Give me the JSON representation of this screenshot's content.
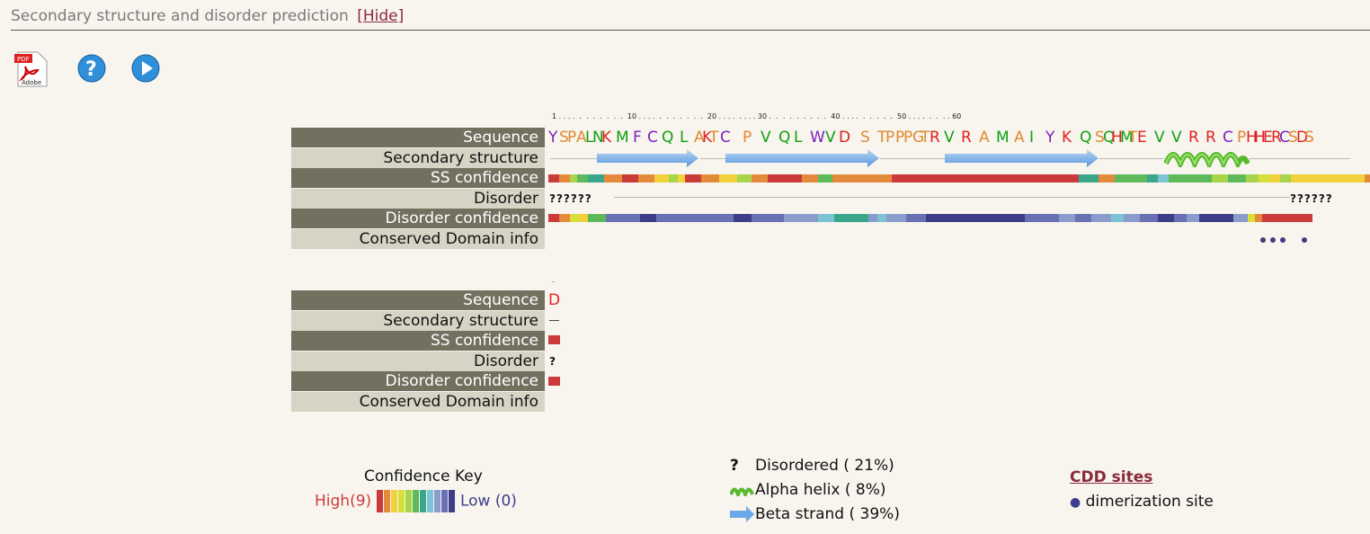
{
  "header": {
    "title": "Secondary structure and disorder prediction",
    "hide_link": "[Hide]"
  },
  "toolbar": {
    "pdf_icon": "pdf-icon",
    "help_icon": "help-icon",
    "play_icon": "play-icon"
  },
  "row_labels": [
    "Sequence",
    "Secondary structure",
    "SS confidence",
    "Disorder",
    "Disorder confidence",
    "Conserved Domain info"
  ],
  "block1": {
    "ruler": "1 . . . .  .  .  .  .  .  .  .  10 . . . .  .  .  .  .  .  .  .  20 . . . .  . . . . 30 .  .  .  .  .  .  .  .  .  40 . . . .  .  .  .  .  .  50 . . . .  .  .  . . 60",
    "sequence": "YSPALNKMFCQLAKTCPVQLWVDSTPPPGTRVRAMAIYKQSQHMTEVVRRCPHHERCSDS",
    "disorder_left": "??????",
    "disorder_right": "??????"
  },
  "block2": {
    "sequence": "D",
    "disorder": "?"
  },
  "confidence_key": {
    "title": "Confidence Key",
    "high": "High(9)",
    "low": "Low (0)",
    "colors": [
      "#cc3b3b",
      "#e48a3b",
      "#f2d23a",
      "#d7df3a",
      "#a8d44a",
      "#5db95a",
      "#3aa68a",
      "#7cc4d4",
      "#8a9ccc",
      "#6a70b4",
      "#3d3d8a"
    ]
  },
  "legend": {
    "disordered": "Disordered ( 21%)",
    "alpha": "Alpha helix ( 8%)",
    "beta": "Beta strand ( 39%)",
    "question": "?"
  },
  "cdd": {
    "title": "CDD sites",
    "item": "dimerization site"
  }
}
